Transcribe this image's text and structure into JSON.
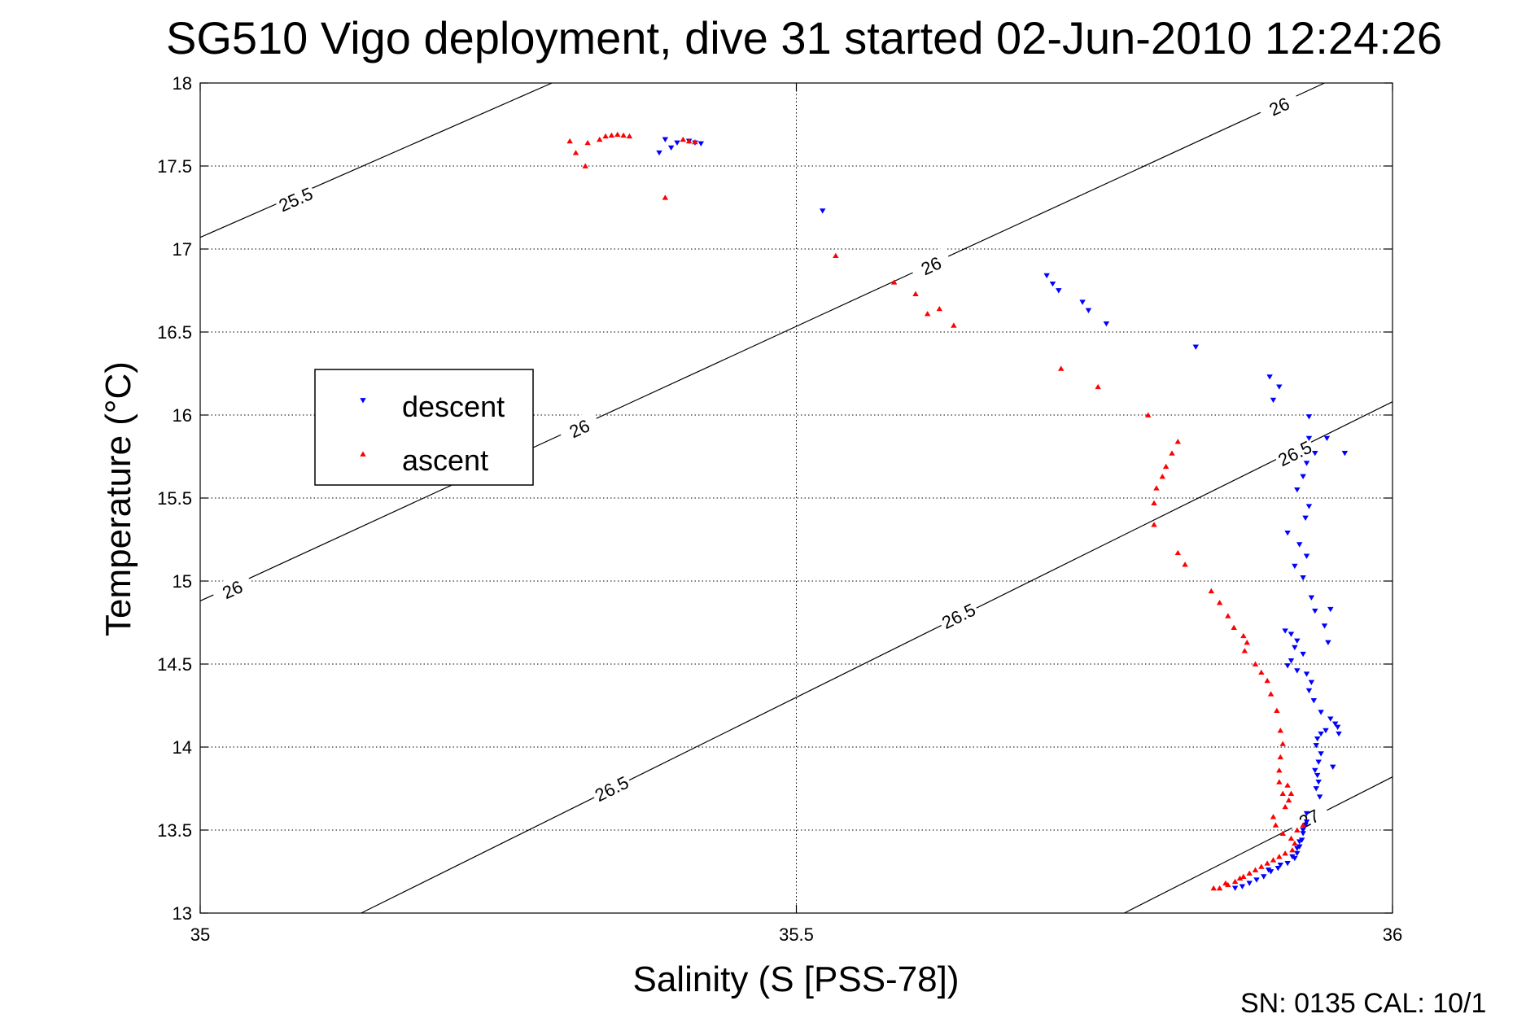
{
  "chart_data": {
    "type": "scatter",
    "title": "SG510 Vigo deployment, dive 31 started 02-Jun-2010 12:24:26",
    "xlabel": "Salinity (S [PSS-78])",
    "ylabel": "Temperature (°C)",
    "xlim": [
      35,
      36
    ],
    "ylim": [
      13,
      18
    ],
    "xticks": [
      "35",
      "35.5",
      "36"
    ],
    "yticks": [
      "13",
      "13.5",
      "14",
      "14.5",
      "15",
      "15.5",
      "16",
      "16.5",
      "17",
      "17.5",
      "18"
    ],
    "grid": true,
    "legend_position": "left-middle",
    "footer": "SN: 0135  CAL: 10/1",
    "contours": [
      {
        "level": "25.5",
        "points": [
          [
            35,
            17.07
          ],
          [
            35.295,
            18
          ]
        ],
        "label_at": [
          35.08,
          17.3
        ]
      },
      {
        "level": "26",
        "points": [
          [
            35,
            14.88
          ],
          [
            35.943,
            18
          ]
        ],
        "label_at": [
          [
            35.027,
            14.95
          ],
          [
            35.318,
            15.92
          ],
          [
            35.613,
            16.9
          ],
          [
            35.905,
            17.86
          ]
        ]
      },
      {
        "level": "26.5",
        "points": [
          [
            35.135,
            13
          ],
          [
            36,
            16.08
          ]
        ],
        "label_at": [
          [
            35.345,
            13.75
          ],
          [
            35.636,
            14.79
          ],
          [
            35.918,
            15.77
          ]
        ]
      },
      {
        "level": "27",
        "points": [
          [
            35.775,
            13
          ],
          [
            36,
            13.82
          ]
        ],
        "label_at": [
          [
            35.93,
            13.57
          ]
        ]
      }
    ],
    "series": [
      {
        "name": "descent",
        "color": "#0000ff",
        "marker": "triangle-down",
        "points": [
          [
            35.39,
            17.66
          ],
          [
            35.4,
            17.64
          ],
          [
            35.41,
            17.65
          ],
          [
            35.415,
            17.64
          ],
          [
            35.42,
            17.635
          ],
          [
            35.385,
            17.58
          ],
          [
            35.395,
            17.61
          ],
          [
            35.522,
            17.23
          ],
          [
            35.71,
            16.84
          ],
          [
            35.715,
            16.79
          ],
          [
            35.72,
            16.75
          ],
          [
            35.74,
            16.68
          ],
          [
            35.745,
            16.63
          ],
          [
            35.76,
            16.55
          ],
          [
            35.835,
            16.41
          ],
          [
            35.897,
            16.23
          ],
          [
            35.9,
            16.09
          ],
          [
            35.905,
            16.17
          ],
          [
            35.93,
            15.99
          ],
          [
            35.93,
            15.86
          ],
          [
            35.935,
            15.77
          ],
          [
            35.928,
            15.71
          ],
          [
            35.925,
            15.63
          ],
          [
            35.92,
            15.55
          ],
          [
            35.93,
            15.45
          ],
          [
            35.927,
            15.38
          ],
          [
            35.912,
            15.29
          ],
          [
            35.922,
            15.22
          ],
          [
            35.928,
            15.15
          ],
          [
            35.918,
            15.09
          ],
          [
            35.925,
            15.02
          ],
          [
            35.932,
            14.9
          ],
          [
            35.935,
            14.82
          ],
          [
            35.943,
            14.73
          ],
          [
            35.91,
            14.7
          ],
          [
            35.915,
            14.68
          ],
          [
            35.92,
            14.64
          ],
          [
            35.918,
            14.6
          ],
          [
            35.925,
            14.56
          ],
          [
            35.915,
            14.52
          ],
          [
            35.912,
            14.49
          ],
          [
            35.92,
            14.46
          ],
          [
            35.928,
            14.44
          ],
          [
            35.932,
            14.39
          ],
          [
            35.93,
            14.34
          ],
          [
            35.934,
            14.28
          ],
          [
            35.94,
            14.21
          ],
          [
            35.948,
            14.17
          ],
          [
            35.952,
            14.14
          ],
          [
            35.954,
            14.12
          ],
          [
            35.955,
            14.08
          ],
          [
            35.944,
            14.1
          ],
          [
            35.94,
            14.08
          ],
          [
            35.937,
            14.05
          ],
          [
            35.936,
            14.01
          ],
          [
            35.94,
            13.96
          ],
          [
            35.938,
            13.91
          ],
          [
            35.935,
            13.86
          ],
          [
            35.937,
            13.83
          ],
          [
            35.938,
            13.79
          ],
          [
            35.936,
            13.75
          ],
          [
            35.939,
            13.7
          ],
          [
            35.95,
            13.88
          ],
          [
            35.945,
            15.86
          ],
          [
            35.96,
            15.77
          ],
          [
            35.948,
            14.83
          ],
          [
            35.946,
            14.63
          ],
          [
            35.928,
            13.6
          ],
          [
            35.927,
            13.53
          ],
          [
            35.925,
            13.48
          ],
          [
            35.924,
            13.44
          ],
          [
            35.922,
            13.4
          ],
          [
            35.92,
            13.36
          ],
          [
            35.918,
            13.33
          ],
          [
            35.912,
            13.3
          ],
          [
            35.904,
            13.27
          ],
          [
            35.898,
            13.25
          ],
          [
            35.892,
            13.22
          ],
          [
            35.886,
            13.2
          ],
          [
            35.88,
            13.18
          ],
          [
            35.874,
            13.16
          ],
          [
            35.868,
            13.15
          ],
          [
            35.896,
            13.26
          ],
          [
            35.906,
            13.29
          ],
          [
            35.916,
            13.34
          ],
          [
            35.92,
            13.39
          ],
          [
            35.922,
            13.43
          ],
          [
            35.925,
            13.5
          ],
          [
            35.928,
            13.55
          ]
        ]
      },
      {
        "name": "ascent",
        "color": "#ff0000",
        "marker": "triangle-up",
        "points": [
          [
            35.31,
            17.65
          ],
          [
            35.315,
            17.58
          ],
          [
            35.323,
            17.5
          ],
          [
            35.325,
            17.64
          ],
          [
            35.335,
            17.66
          ],
          [
            35.34,
            17.68
          ],
          [
            35.345,
            17.685
          ],
          [
            35.35,
            17.69
          ],
          [
            35.355,
            17.685
          ],
          [
            35.36,
            17.68
          ],
          [
            35.39,
            17.31
          ],
          [
            35.405,
            17.66
          ],
          [
            35.41,
            17.65
          ],
          [
            35.415,
            17.645
          ],
          [
            35.533,
            16.96
          ],
          [
            35.582,
            16.8
          ],
          [
            35.6,
            16.73
          ],
          [
            35.61,
            16.61
          ],
          [
            35.62,
            16.64
          ],
          [
            35.632,
            16.54
          ],
          [
            35.722,
            16.28
          ],
          [
            35.753,
            16.17
          ],
          [
            35.795,
            16.0
          ],
          [
            35.82,
            15.84
          ],
          [
            35.815,
            15.77
          ],
          [
            35.81,
            15.69
          ],
          [
            35.807,
            15.63
          ],
          [
            35.802,
            15.56
          ],
          [
            35.8,
            15.47
          ],
          [
            35.8,
            15.34
          ],
          [
            35.82,
            15.17
          ],
          [
            35.826,
            15.1
          ],
          [
            35.848,
            14.94
          ],
          [
            35.855,
            14.87
          ],
          [
            35.862,
            14.79
          ],
          [
            35.867,
            14.72
          ],
          [
            35.875,
            14.67
          ],
          [
            35.878,
            14.63
          ],
          [
            35.876,
            14.58
          ],
          [
            35.885,
            14.5
          ],
          [
            35.89,
            14.45
          ],
          [
            35.895,
            14.4
          ],
          [
            35.898,
            14.32
          ],
          [
            35.903,
            14.22
          ],
          [
            35.906,
            14.1
          ],
          [
            35.908,
            14.02
          ],
          [
            35.906,
            13.94
          ],
          [
            35.905,
            13.86
          ],
          [
            35.905,
            13.79
          ],
          [
            35.908,
            13.72
          ],
          [
            35.912,
            13.77
          ],
          [
            35.915,
            13.72
          ],
          [
            35.913,
            13.68
          ],
          [
            35.91,
            13.64
          ],
          [
            35.9,
            13.58
          ],
          [
            35.902,
            13.53
          ],
          [
            35.908,
            13.48
          ],
          [
            35.915,
            13.45
          ],
          [
            35.92,
            13.5
          ],
          [
            35.925,
            13.53
          ],
          [
            35.916,
            13.38
          ],
          [
            35.905,
            13.34
          ],
          [
            35.895,
            13.3
          ],
          [
            35.885,
            13.26
          ],
          [
            35.875,
            13.22
          ],
          [
            35.868,
            13.19
          ],
          [
            35.862,
            13.17
          ],
          [
            35.855,
            13.15
          ],
          [
            35.85,
            13.15
          ],
          [
            35.86,
            13.18
          ],
          [
            35.872,
            13.21
          ],
          [
            35.88,
            13.24
          ],
          [
            35.89,
            13.28
          ],
          [
            35.9,
            13.32
          ],
          [
            35.91,
            13.36
          ],
          [
            35.918,
            13.42
          ]
        ]
      }
    ]
  }
}
